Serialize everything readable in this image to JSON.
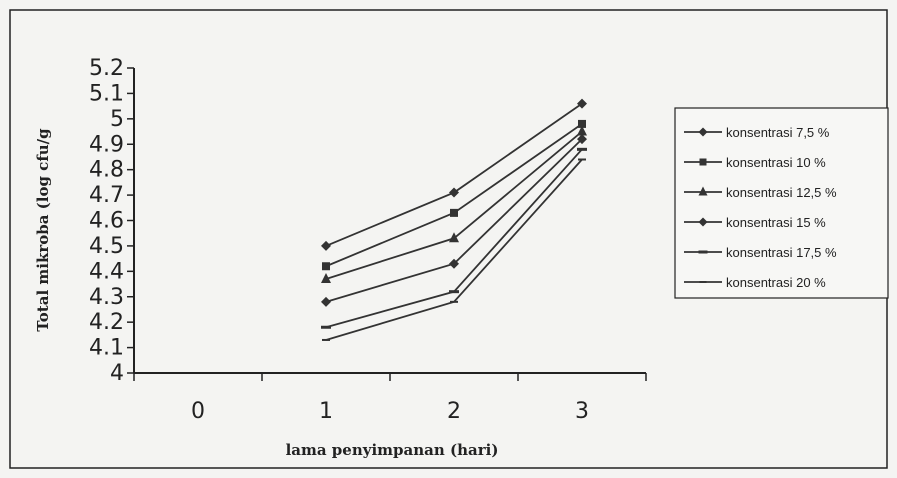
{
  "chart_data": {
    "type": "line",
    "xlabel": "lama penyimpanan (hari)",
    "ylabel": "Total mikroba (log cfu/g",
    "x": [
      1,
      2,
      3
    ],
    "xticks": [
      "0",
      "1",
      "2",
      "3"
    ],
    "xlim": [
      0,
      3
    ],
    "ylim": [
      4,
      5.2
    ],
    "yticks": [
      "4",
      "4.1",
      "4.2",
      "4.3",
      "4.4",
      "4.5",
      "4.6",
      "4.7",
      "4.8",
      "4.9",
      "5",
      "5.1",
      "5.2"
    ],
    "grid": false,
    "legend_position": "right",
    "series": [
      {
        "name": "konsentrasi 7,5 %",
        "marker": "diamond",
        "values": [
          4.5,
          4.71,
          5.06
        ]
      },
      {
        "name": "konsentrasi 10 %",
        "marker": "square",
        "values": [
          4.42,
          4.63,
          4.98
        ]
      },
      {
        "name": "konsentrasi 12,5 %",
        "marker": "triangle",
        "values": [
          4.37,
          4.53,
          4.95
        ]
      },
      {
        "name": "konsentrasi 15 %",
        "marker": "diamond",
        "values": [
          4.28,
          4.43,
          4.92
        ]
      },
      {
        "name": "konsentrasi 17,5 %",
        "marker": "dash",
        "values": [
          4.18,
          4.32,
          4.88
        ]
      },
      {
        "name": "konsentrasi 20 %",
        "marker": "small-dash",
        "values": [
          4.13,
          4.28,
          4.84
        ]
      }
    ],
    "colors": {
      "line": "#333333",
      "frame": "#222222",
      "background": "#f4f4f2"
    }
  }
}
